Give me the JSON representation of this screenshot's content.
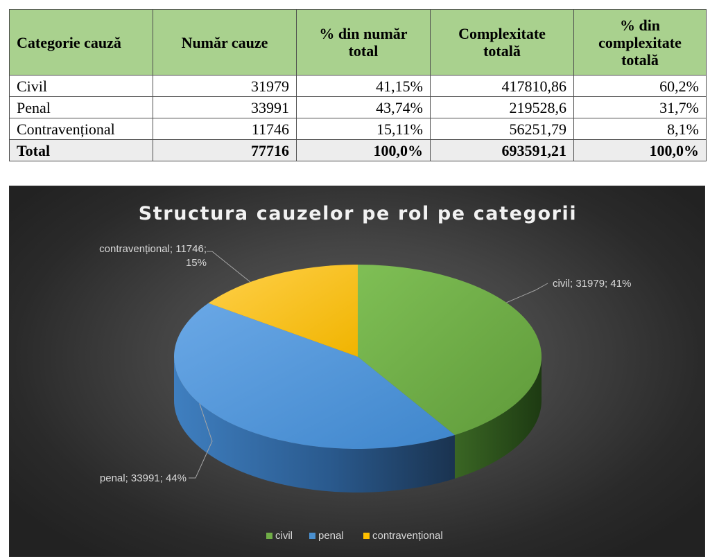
{
  "table": {
    "headers": [
      [
        "Categorie cauză"
      ],
      [
        "Număr cauze"
      ],
      [
        "% din număr",
        "total"
      ],
      [
        "Complexitate",
        "totală"
      ],
      [
        "% din",
        "complexitate",
        "totală"
      ]
    ],
    "rows": [
      [
        "Civil",
        "31979",
        "41,15%",
        "417810,86",
        "60,2%"
      ],
      [
        "Penal",
        "33991",
        "43,74%",
        "219528,6",
        "31,7%"
      ],
      [
        "Contravențional",
        "11746",
        "15,11%",
        "56251,79",
        "8,1%"
      ]
    ],
    "total_row": [
      "Total",
      "77716",
      "100,0%",
      "693591,21",
      "100,0%"
    ]
  },
  "chart_data": {
    "type": "pie",
    "title": "Structura cauzelor pe rol pe categorii",
    "slices": [
      {
        "name": "civil",
        "value": 31979,
        "percent": "41%",
        "label": "civil; 31979; 41%",
        "color": "#70ad47"
      },
      {
        "name": "penal",
        "value": 33991,
        "percent": "44%",
        "label": "penal; 33991; 44%",
        "color": "#4a90d0"
      },
      {
        "name": "contravențional",
        "value": 11746,
        "percent": "15%",
        "label_line1": "contravențional; 11746;",
        "label_line2": "15%",
        "color": "#ffc000"
      }
    ],
    "legend": {
      "placement": "bottom",
      "items": [
        "civil",
        "penal",
        "contravențional"
      ]
    },
    "three_d": true,
    "background": "dark"
  }
}
